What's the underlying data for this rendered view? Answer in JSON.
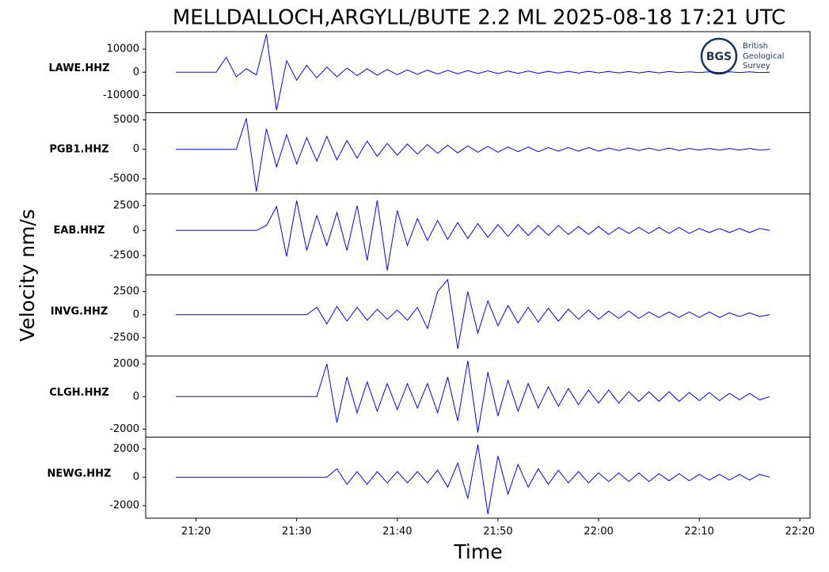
{
  "chart_data": {
    "type": "line",
    "title": "MELLDALLOCH,ARGYLL/BUTE 2.2 ML   2025-08-18 17:21 UTC",
    "xlabel": "Time",
    "ylabel": "Velocity nm/s",
    "logo": {
      "mark": "BGS",
      "lines": [
        "British",
        "Geological",
        "Survey"
      ]
    },
    "x": [
      "21:18",
      "21:19",
      "21:20",
      "21:21",
      "21:22",
      "21:23",
      "21:24",
      "21:25",
      "21:26",
      "21:27",
      "21:28",
      "21:29",
      "21:30",
      "21:31",
      "21:32",
      "21:33",
      "21:34",
      "21:35",
      "21:36",
      "21:37",
      "21:38",
      "21:39",
      "21:40",
      "21:41",
      "21:42",
      "21:43",
      "21:44",
      "21:45",
      "21:46",
      "21:47",
      "21:48",
      "21:49",
      "21:50",
      "21:51",
      "21:52",
      "21:53",
      "21:54",
      "21:55",
      "21:56",
      "21:57",
      "21:58",
      "21:59",
      "22:00",
      "22:01",
      "22:02",
      "22:03",
      "22:04",
      "22:05",
      "22:06",
      "22:07",
      "22:08",
      "22:09",
      "22:10",
      "22:11",
      "22:12",
      "22:13",
      "22:14",
      "22:15",
      "22:16",
      "22:17"
    ],
    "xlim": [
      "21:15",
      "22:21"
    ],
    "xticks": [
      "21:20",
      "21:30",
      "21:40",
      "21:50",
      "22:00",
      "22:10",
      "22:20"
    ],
    "series": [
      {
        "name": "LAWE.HHZ",
        "color": "#0000ff",
        "ylim": [
          -17600,
          17600
        ],
        "yticks": [
          -10000,
          0,
          10000
        ],
        "values": [
          0,
          0,
          0,
          0,
          0,
          6500,
          -2000,
          1500,
          -1200,
          16500,
          -16500,
          5000,
          -3500,
          3000,
          -2500,
          2200,
          -2000,
          1800,
          -1500,
          1500,
          -1300,
          1200,
          -1100,
          1000,
          -900,
          900,
          -800,
          800,
          -700,
          700,
          -600,
          600,
          -600,
          500,
          -500,
          500,
          -500,
          400,
          -400,
          400,
          -400,
          400,
          -300,
          300,
          -300,
          300,
          -300,
          300,
          -300,
          300,
          -200,
          200,
          -200,
          200,
          -200,
          200,
          -200,
          200,
          -200,
          0
        ]
      },
      {
        "name": "PGB1.HHZ",
        "color": "#0000ff",
        "ylim": [
          -7570,
          6220
        ],
        "yticks": [
          -5000,
          0,
          5000
        ],
        "values": [
          0,
          0,
          0,
          0,
          0,
          0,
          0,
          5300,
          -7200,
          3500,
          -3000,
          2500,
          -2500,
          2000,
          -2000,
          2200,
          -1800,
          1500,
          -1500,
          1400,
          -1200,
          1000,
          -1000,
          900,
          -800,
          800,
          -700,
          700,
          -600,
          600,
          -500,
          500,
          -500,
          400,
          -400,
          400,
          -400,
          300,
          -300,
          300,
          -300,
          300,
          -300,
          200,
          -200,
          200,
          -200,
          200,
          -200,
          200,
          -200,
          150,
          -150,
          150,
          -150,
          150,
          -150,
          150,
          -150,
          0
        ]
      },
      {
        "name": "EAB.HHZ",
        "color": "#0000ff",
        "ylim": [
          -4450,
          3670
        ],
        "yticks": [
          -2500,
          0,
          2500
        ],
        "values": [
          0,
          0,
          0,
          0,
          0,
          0,
          0,
          0,
          0,
          500,
          2400,
          -2600,
          3000,
          -2000,
          1500,
          -1500,
          1800,
          -2000,
          2500,
          -3000,
          3000,
          -4000,
          2000,
          -1500,
          1200,
          -1000,
          1000,
          -900,
          800,
          -800,
          700,
          -700,
          600,
          -600,
          600,
          -500,
          500,
          -500,
          500,
          -400,
          400,
          -400,
          400,
          -400,
          300,
          -300,
          300,
          -300,
          300,
          -300,
          300,
          -300,
          200,
          -200,
          200,
          -200,
          200,
          -200,
          200,
          0
        ]
      },
      {
        "name": "INVG.HHZ",
        "color": "#0000ff",
        "ylim": [
          -4480,
          4310
        ],
        "yticks": [
          -2500,
          0,
          2500
        ],
        "values": [
          0,
          0,
          0,
          0,
          0,
          0,
          0,
          0,
          0,
          0,
          0,
          0,
          0,
          0,
          800,
          -1000,
          900,
          -700,
          800,
          -600,
          600,
          -500,
          500,
          -600,
          800,
          -1500,
          2500,
          3800,
          -3700,
          2500,
          -2000,
          1500,
          -1200,
          1000,
          -900,
          800,
          -800,
          700,
          -700,
          600,
          -500,
          500,
          -500,
          400,
          -400,
          400,
          -400,
          300,
          -300,
          300,
          -300,
          300,
          -300,
          300,
          -300,
          200,
          -200,
          200,
          -200,
          0
        ]
      },
      {
        "name": "CLGH.HHZ",
        "color": "#0000ff",
        "ylim": [
          -2490,
          2490
        ],
        "yticks": [
          -2000,
          0,
          2000
        ],
        "values": [
          0,
          0,
          0,
          0,
          0,
          0,
          0,
          0,
          0,
          0,
          0,
          0,
          0,
          0,
          0,
          2000,
          -1600,
          1200,
          -1000,
          900,
          -900,
          800,
          -800,
          800,
          -700,
          800,
          -1000,
          1200,
          -1500,
          2200,
          -2200,
          1500,
          -1200,
          1000,
          -900,
          800,
          -700,
          600,
          -600,
          500,
          -500,
          400,
          -400,
          400,
          -400,
          300,
          -300,
          300,
          -300,
          300,
          -300,
          250,
          -250,
          250,
          -250,
          200,
          -200,
          200,
          -200,
          0
        ]
      },
      {
        "name": "NEWG.HHZ",
        "color": "#0000ff",
        "ylim": [
          -2890,
          2830
        ],
        "yticks": [
          -2000,
          0,
          2000
        ],
        "values": [
          0,
          0,
          0,
          0,
          0,
          0,
          0,
          0,
          0,
          0,
          0,
          0,
          0,
          0,
          0,
          0,
          600,
          -500,
          400,
          -500,
          400,
          -400,
          400,
          -400,
          400,
          -400,
          500,
          -700,
          1000,
          -1500,
          2300,
          -2600,
          1500,
          -1200,
          900,
          -700,
          600,
          -500,
          500,
          -400,
          400,
          -400,
          300,
          -300,
          300,
          -300,
          300,
          -300,
          250,
          -250,
          250,
          -250,
          200,
          -200,
          200,
          -200,
          200,
          -200,
          200,
          0
        ]
      }
    ]
  }
}
